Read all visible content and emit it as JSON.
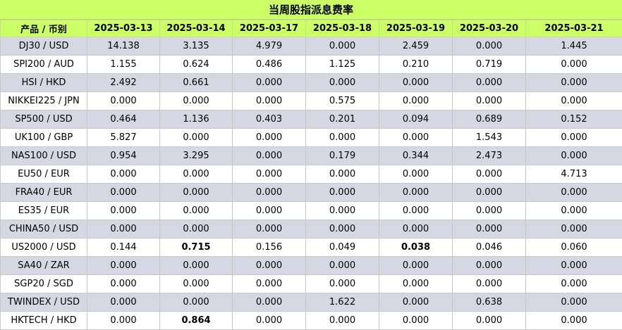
{
  "title": "当周股指派息费率",
  "columns": [
    "产品 / 币别",
    "2025-03-13",
    "2025-03-14",
    "2025-03-17",
    "2025-03-18",
    "2025-03-19",
    "2025-03-20",
    "2025-03-21"
  ],
  "rows": [
    {
      "product": "DJ30 / USD",
      "values": [
        "14.138",
        "3.135",
        "4.979",
        "0.000",
        "2.459",
        "0.000",
        "1.445"
      ]
    },
    {
      "product": "SPI200 / AUD",
      "values": [
        "1.155",
        "0.624",
        "0.486",
        "1.125",
        "0.210",
        "0.719",
        "0.000"
      ]
    },
    {
      "product": "HSI / HKD",
      "values": [
        "2.492",
        "0.661",
        "0.000",
        "0.000",
        "0.000",
        "0.000",
        "0.000"
      ]
    },
    {
      "product": "NIKKEI225 / JPN",
      "values": [
        "0.000",
        "0.000",
        "0.000",
        "0.575",
        "0.000",
        "0.000",
        "0.000"
      ]
    },
    {
      "product": "SP500 / USD",
      "values": [
        "0.464",
        "1.136",
        "0.403",
        "0.201",
        "0.094",
        "0.689",
        "0.152"
      ]
    },
    {
      "product": "UK100 / GBP",
      "values": [
        "5.827",
        "0.000",
        "0.000",
        "0.000",
        "0.000",
        "1.543",
        "0.000"
      ]
    },
    {
      "product": "NAS100 / USD",
      "values": [
        "0.954",
        "3.295",
        "0.000",
        "0.179",
        "0.344",
        "2.473",
        "0.000"
      ]
    },
    {
      "product": "EU50 / EUR",
      "values": [
        "0.000",
        "0.000",
        "0.000",
        "0.000",
        "0.000",
        "0.000",
        "4.713"
      ]
    },
    {
      "product": "FRA40 / EUR",
      "values": [
        "0.000",
        "0.000",
        "0.000",
        "0.000",
        "0.000",
        "0.000",
        "0.000"
      ]
    },
    {
      "product": "ES35 / EUR",
      "values": [
        "0.000",
        "0.000",
        "0.000",
        "0.000",
        "0.000",
        "0.000",
        "0.000"
      ]
    },
    {
      "product": "CHINA50 / USD",
      "values": [
        "0.000",
        "0.000",
        "0.000",
        "0.000",
        "0.000",
        "0.000",
        "0.000"
      ]
    },
    {
      "product": "US2000 / USD",
      "values": [
        "0.144",
        "0.715",
        "0.156",
        "0.049",
        "0.038",
        "0.046",
        "0.060"
      ],
      "bold": [
        1,
        4
      ]
    },
    {
      "product": "SA40 / ZAR",
      "values": [
        "0.000",
        "0.000",
        "0.000",
        "0.000",
        "0.000",
        "0.000",
        "0.000"
      ]
    },
    {
      "product": "SGP20 / SGD",
      "values": [
        "0.000",
        "0.000",
        "0.000",
        "0.000",
        "0.000",
        "0.000",
        "0.000"
      ]
    },
    {
      "product": "TWINDEX / USD",
      "values": [
        "0.000",
        "0.000",
        "0.000",
        "1.622",
        "0.000",
        "0.638",
        "0.000"
      ]
    },
    {
      "product": "HKTECH / HKD",
      "values": [
        "0.000",
        "0.864",
        "0.000",
        "0.000",
        "0.000",
        "0.000",
        "0.000"
      ],
      "bold": [
        1
      ]
    }
  ],
  "colors": {
    "header_bg": "#ccff66",
    "stripe_bg": "#d5d8e2",
    "row_bg": "#ffffff"
  }
}
